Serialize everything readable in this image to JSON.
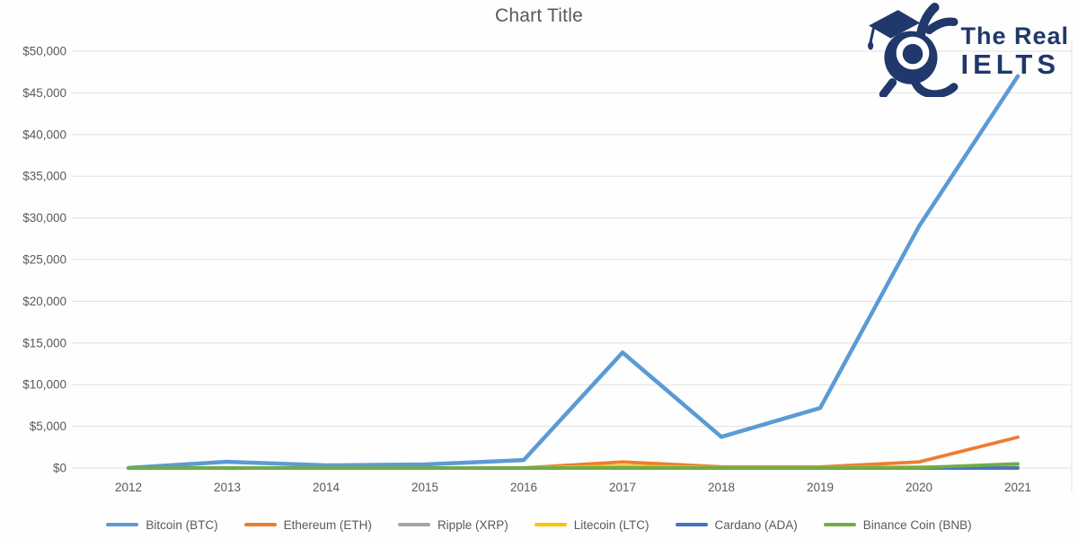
{
  "chart_data": {
    "type": "line",
    "title": "Chart Title",
    "x": [
      "2012",
      "2013",
      "2014",
      "2015",
      "2016",
      "2017",
      "2018",
      "2019",
      "2020",
      "2021"
    ],
    "series": [
      {
        "name": "Bitcoin (BTC)",
        "color": "#5B9BD5",
        "values": [
          13,
          750,
          320,
          430,
          960,
          13860,
          3740,
          7200,
          29000,
          47000
        ]
      },
      {
        "name": "Ethereum (ETH)",
        "color": "#ED7D31",
        "values": [
          0,
          0,
          0,
          1,
          8,
          730,
          140,
          130,
          730,
          3700
        ]
      },
      {
        "name": "Ripple (XRP)",
        "color": "#A5A5A5",
        "values": [
          0,
          0,
          0,
          0,
          0,
          2,
          0,
          0,
          0,
          1
        ]
      },
      {
        "name": "Litecoin (LTC)",
        "color": "#FFC000",
        "values": [
          0,
          24,
          3,
          4,
          4,
          230,
          32,
          42,
          125,
          150
        ]
      },
      {
        "name": "Cardano (ADA)",
        "color": "#4472C4",
        "values": [
          0,
          0,
          0,
          0,
          0,
          1,
          0,
          0,
          0,
          1
        ]
      },
      {
        "name": "Binance Coin (BNB)",
        "color": "#70AD47",
        "values": [
          0,
          0,
          0,
          0,
          0,
          9,
          6,
          14,
          38,
          510
        ]
      }
    ],
    "ylim": [
      0,
      50000
    ],
    "ytick_step": 5000,
    "yticks": [
      "$0",
      "$5,000",
      "$10,000",
      "$15,000",
      "$20,000",
      "$25,000",
      "$30,000",
      "$35,000",
      "$40,000",
      "$45,000",
      "$50,000"
    ],
    "grid": true,
    "legend_position": "bottom",
    "xlabel": "",
    "ylabel": ""
  },
  "logo": {
    "line1": "The Real",
    "line2": "IELTS",
    "color": "#20386b",
    "mascot": "graduate-owl-mascot-icon"
  },
  "colors": {
    "title_text": "#595959",
    "axis_text": "#595959",
    "gridline": "#e0e0e0"
  }
}
